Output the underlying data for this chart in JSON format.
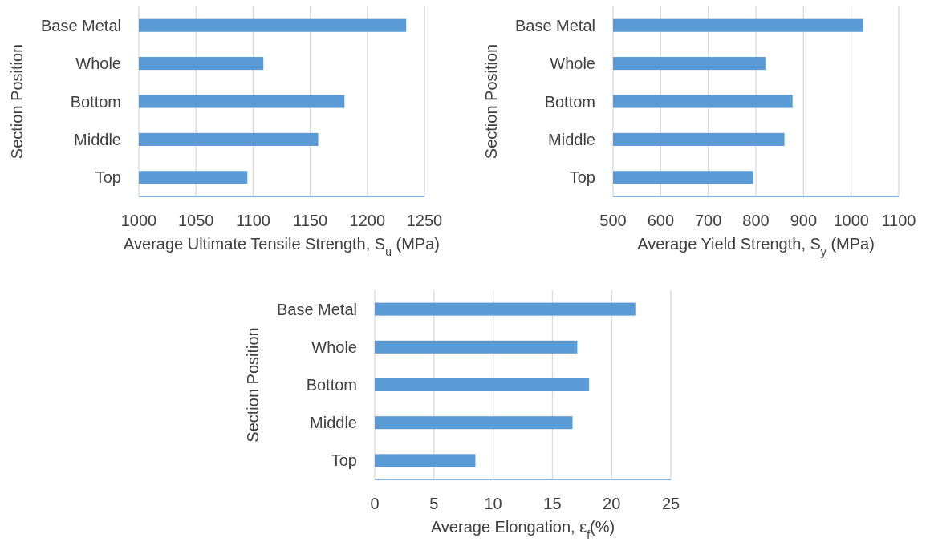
{
  "chart_data": [
    {
      "type": "bar",
      "orientation": "horizontal",
      "categories": [
        "Base Metal",
        "Whole",
        "Bottom",
        "Middle",
        "Top"
      ],
      "values": [
        1234,
        1109,
        1180,
        1157,
        1095
      ],
      "color": "#5b9bd5",
      "xlim": [
        1000,
        1250
      ],
      "xticks": [
        1000,
        1050,
        1100,
        1150,
        1200,
        1250
      ],
      "grid": "x",
      "xlabel": "Average Ultimate Tensile Strength, S$_{u}$ (MPa)",
      "ylabel": "Section Position"
    },
    {
      "type": "bar",
      "orientation": "horizontal",
      "categories": [
        "Base Metal",
        "Whole",
        "Bottom",
        "Middle",
        "Top"
      ],
      "values": [
        1025,
        820,
        877,
        860,
        794
      ],
      "color": "#5b9bd5",
      "xlim": [
        500,
        1100
      ],
      "xticks": [
        500,
        600,
        700,
        800,
        900,
        1000,
        1100
      ],
      "grid": "x",
      "xlabel": "Average Yield Strength, S$_{y}$ (MPa)",
      "ylabel": "Section Position"
    },
    {
      "type": "bar",
      "orientation": "horizontal",
      "categories": [
        "Base Metal",
        "Whole",
        "Bottom",
        "Middle",
        "Top"
      ],
      "values": [
        22.0,
        17.1,
        18.1,
        16.7,
        8.5
      ],
      "color": "#5b9bd5",
      "xlim": [
        0,
        25
      ],
      "xticks": [
        0,
        5,
        10,
        15,
        20,
        25
      ],
      "grid": "x",
      "xlabel": "Average Elongation, ε$_{f}$(%)",
      "ylabel": "Section Position"
    }
  ]
}
